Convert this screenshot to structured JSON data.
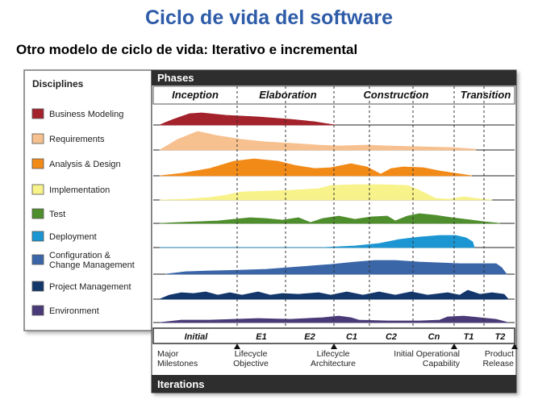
{
  "title": "Ciclo de vida del software",
  "subtitle": "Otro modelo de ciclo de vida: Iterativo e incremental",
  "disciplines_header": "Disciplines",
  "phases_header": "Phases",
  "iterations_header": "Iterations",
  "phases": [
    "Inception",
    "Elaboration",
    "Construction",
    "Transition"
  ],
  "disciplines": [
    {
      "label_lines": [
        "Business Modeling"
      ],
      "color": "#a3222b"
    },
    {
      "label_lines": [
        "Requirements"
      ],
      "color": "#f7c08f"
    },
    {
      "label_lines": [
        "Analysis & Design"
      ],
      "color": "#f28a18"
    },
    {
      "label_lines": [
        "Implementation"
      ],
      "color": "#f7f28a"
    },
    {
      "label_lines": [
        "Test"
      ],
      "color": "#4f8e2c"
    },
    {
      "label_lines": [
        "Deployment"
      ],
      "color": "#1b96d2"
    },
    {
      "label_lines": [
        "Configuration &",
        "Change Management"
      ],
      "color": "#3a66a8"
    },
    {
      "label_lines": [
        "Project Management"
      ],
      "color": "#13376b"
    },
    {
      "label_lines": [
        "Environment"
      ],
      "color": "#4a3a78"
    }
  ],
  "iterations": [
    "Initial",
    "E1",
    "E2",
    "C1",
    "C2",
    "Cn",
    "T1",
    "T2"
  ],
  "milestones": [
    {
      "lines": [
        "Major",
        "Milestones"
      ]
    },
    {
      "lines": [
        "Lifecycle",
        "Objective"
      ]
    },
    {
      "lines": [
        "Lifecycle",
        "Architecture"
      ]
    },
    {
      "lines": [
        "Initial Operational",
        "Capability"
      ]
    },
    {
      "lines": [
        "Product",
        "Release"
      ]
    }
  ]
}
